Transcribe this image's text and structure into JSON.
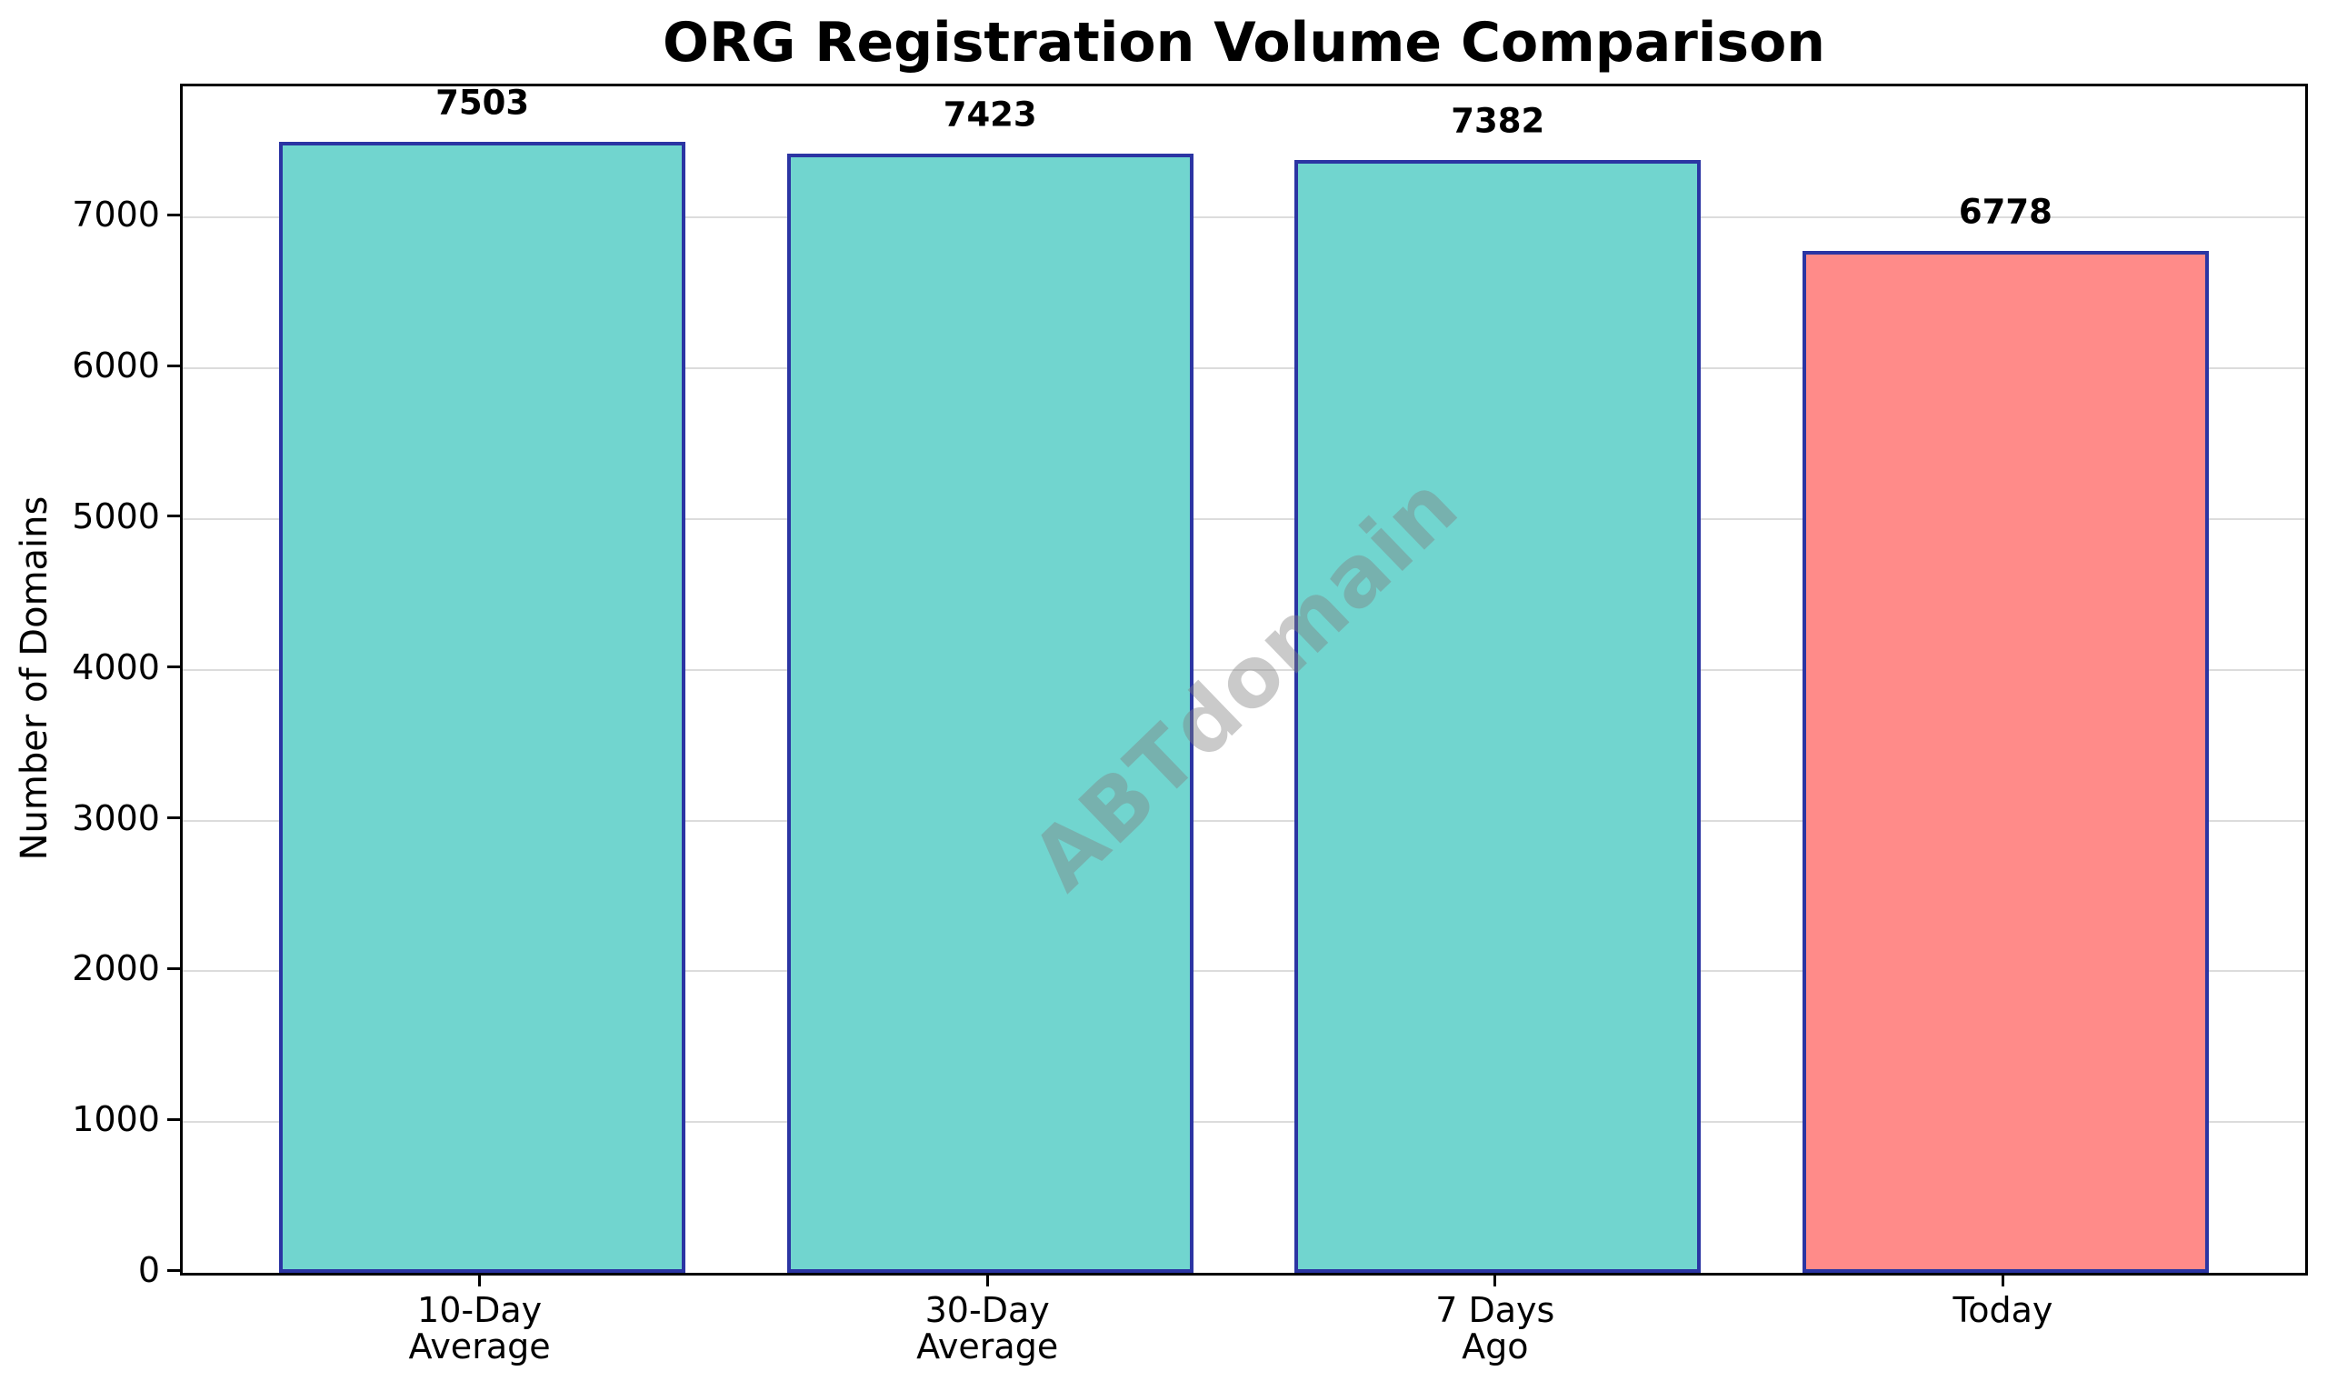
{
  "title": "ORG Registration Volume Comparison",
  "watermark": "ABTdomain",
  "chart_data": {
    "type": "bar",
    "title": "ORG Registration Volume Comparison",
    "xlabel": "",
    "ylabel": "Number of Domains",
    "categories": [
      "10-Day Average",
      "30-Day Average",
      "7 Days Ago",
      "Today"
    ],
    "category_lines": [
      [
        "10-Day",
        "Average"
      ],
      [
        "30-Day",
        "Average"
      ],
      [
        "7 Days",
        "Ago"
      ],
      [
        "Today"
      ]
    ],
    "values": [
      7503,
      7423,
      7382,
      6778
    ],
    "value_labels": [
      "7503",
      "7423",
      "7382",
      "6778"
    ],
    "bar_colors": [
      "#71D5CF",
      "#71D5CF",
      "#71D5CF",
      "#FF8B89"
    ],
    "bar_edge_color": "#2B35A3",
    "ylim": [
      0,
      7870
    ],
    "yticks": [
      0,
      1000,
      2000,
      3000,
      4000,
      5000,
      6000,
      7000
    ],
    "grid": "horizontal",
    "grid_color": "#dcdcdc",
    "legend": "none",
    "watermark_text": "ABTdomain"
  }
}
